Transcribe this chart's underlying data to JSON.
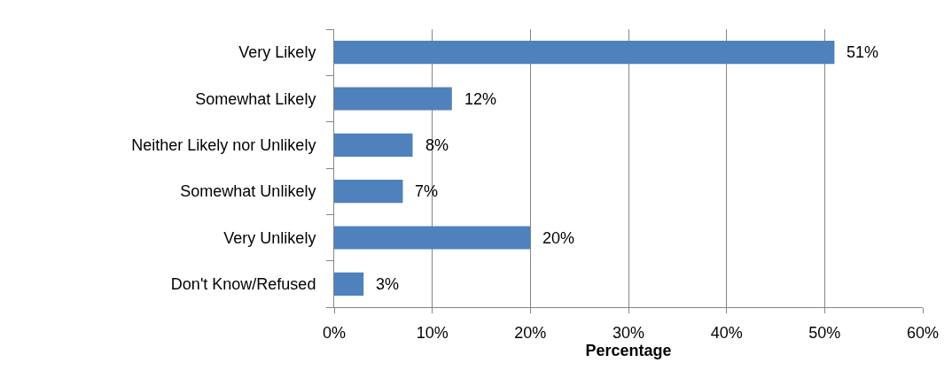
{
  "chart_data": {
    "type": "bar",
    "orientation": "horizontal",
    "xlabel": "Percentage",
    "categories": [
      "Very Likely",
      "Somewhat Likely",
      "Neither Likely nor Unlikely",
      "Somewhat Unlikely",
      "Very Unlikely",
      "Don't Know/Refused"
    ],
    "values": [
      51,
      12,
      8,
      7,
      20,
      3
    ],
    "value_labels": [
      "51%",
      "12%",
      "8%",
      "7%",
      "20%",
      "3%"
    ],
    "color": "#4f81bd",
    "xlim": [
      0,
      60
    ],
    "xticks": [
      {
        "value": 0,
        "label": "0%"
      },
      {
        "value": 10,
        "label": "10%"
      },
      {
        "value": 20,
        "label": "20%"
      },
      {
        "value": 30,
        "label": "30%"
      },
      {
        "value": 40,
        "label": "40%"
      },
      {
        "value": 50,
        "label": "50%"
      },
      {
        "value": 60,
        "label": "60%"
      }
    ],
    "grid": "x"
  }
}
